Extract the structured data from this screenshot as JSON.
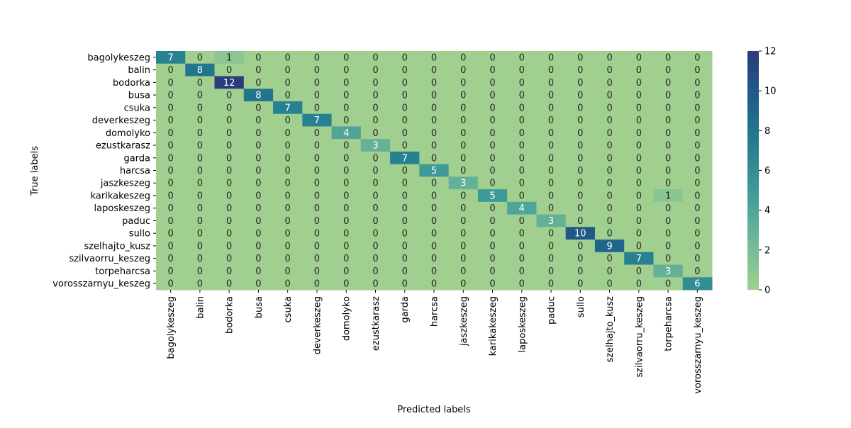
{
  "chart_data": {
    "type": "heatmap",
    "title": "",
    "xlabel": "Predicted labels",
    "ylabel": "True labels",
    "x_categories": [
      "bagolykeszeg",
      "balin",
      "bodorka",
      "busa",
      "csuka",
      "deverkeszeg",
      "domolyko",
      "ezustkarasz",
      "garda",
      "harcsa",
      "jaszkeszeg",
      "karikakeszeg",
      "laposkeszeg",
      "paduc",
      "sullo",
      "szelhajto_kusz",
      "szilvaorru_keszeg",
      "torpeharcsa",
      "vorosszarnyu_keszeg"
    ],
    "y_categories": [
      "bagolykeszeg",
      "balin",
      "bodorka",
      "busa",
      "csuka",
      "deverkeszeg",
      "domolyko",
      "ezustkarasz",
      "garda",
      "harcsa",
      "jaszkeszeg",
      "karikakeszeg",
      "laposkeszeg",
      "paduc",
      "sullo",
      "szelhajto_kusz",
      "szilvaorru_keszeg",
      "torpeharcsa",
      "vorosszarnyu_keszeg"
    ],
    "values": [
      [
        7,
        0,
        1,
        0,
        0,
        0,
        0,
        0,
        0,
        0,
        0,
        0,
        0,
        0,
        0,
        0,
        0,
        0,
        0
      ],
      [
        0,
        8,
        0,
        0,
        0,
        0,
        0,
        0,
        0,
        0,
        0,
        0,
        0,
        0,
        0,
        0,
        0,
        0,
        0
      ],
      [
        0,
        0,
        12,
        0,
        0,
        0,
        0,
        0,
        0,
        0,
        0,
        0,
        0,
        0,
        0,
        0,
        0,
        0,
        0
      ],
      [
        0,
        0,
        0,
        8,
        0,
        0,
        0,
        0,
        0,
        0,
        0,
        0,
        0,
        0,
        0,
        0,
        0,
        0,
        0
      ],
      [
        0,
        0,
        0,
        0,
        7,
        0,
        0,
        0,
        0,
        0,
        0,
        0,
        0,
        0,
        0,
        0,
        0,
        0,
        0
      ],
      [
        0,
        0,
        0,
        0,
        0,
        7,
        0,
        0,
        0,
        0,
        0,
        0,
        0,
        0,
        0,
        0,
        0,
        0,
        0
      ],
      [
        0,
        0,
        0,
        0,
        0,
        0,
        4,
        0,
        0,
        0,
        0,
        0,
        0,
        0,
        0,
        0,
        0,
        0,
        0
      ],
      [
        0,
        0,
        0,
        0,
        0,
        0,
        0,
        3,
        0,
        0,
        0,
        0,
        0,
        0,
        0,
        0,
        0,
        0,
        0
      ],
      [
        0,
        0,
        0,
        0,
        0,
        0,
        0,
        0,
        7,
        0,
        0,
        0,
        0,
        0,
        0,
        0,
        0,
        0,
        0
      ],
      [
        0,
        0,
        0,
        0,
        0,
        0,
        0,
        0,
        0,
        5,
        0,
        0,
        0,
        0,
        0,
        0,
        0,
        0,
        0
      ],
      [
        0,
        0,
        0,
        0,
        0,
        0,
        0,
        0,
        0,
        0,
        3,
        0,
        0,
        0,
        0,
        0,
        0,
        0,
        0
      ],
      [
        0,
        0,
        0,
        0,
        0,
        0,
        0,
        0,
        0,
        0,
        0,
        5,
        0,
        0,
        0,
        0,
        0,
        1,
        0
      ],
      [
        0,
        0,
        0,
        0,
        0,
        0,
        0,
        0,
        0,
        0,
        0,
        0,
        4,
        0,
        0,
        0,
        0,
        0,
        0
      ],
      [
        0,
        0,
        0,
        0,
        0,
        0,
        0,
        0,
        0,
        0,
        0,
        0,
        0,
        3,
        0,
        0,
        0,
        0,
        0
      ],
      [
        0,
        0,
        0,
        0,
        0,
        0,
        0,
        0,
        0,
        0,
        0,
        0,
        0,
        0,
        10,
        0,
        0,
        0,
        0
      ],
      [
        0,
        0,
        0,
        0,
        0,
        0,
        0,
        0,
        0,
        0,
        0,
        0,
        0,
        0,
        0,
        9,
        0,
        0,
        0
      ],
      [
        0,
        0,
        0,
        0,
        0,
        0,
        0,
        0,
        0,
        0,
        0,
        0,
        0,
        0,
        0,
        0,
        7,
        0,
        0
      ],
      [
        0,
        0,
        0,
        0,
        0,
        0,
        0,
        0,
        0,
        0,
        0,
        0,
        0,
        0,
        0,
        0,
        0,
        3,
        0
      ],
      [
        0,
        0,
        0,
        0,
        0,
        0,
        0,
        0,
        0,
        0,
        0,
        0,
        0,
        0,
        0,
        0,
        0,
        0,
        6
      ]
    ],
    "vmin": 0,
    "vmax": 12,
    "colorbar_ticks": [
      0,
      2,
      4,
      6,
      8,
      10,
      12
    ],
    "colormap": [
      "#a0cf8f",
      "#70b898",
      "#409c98",
      "#267f8f",
      "#1e5e89",
      "#2c3b7a"
    ],
    "annotations": true,
    "grid": false,
    "colorbar_placement": "right"
  }
}
